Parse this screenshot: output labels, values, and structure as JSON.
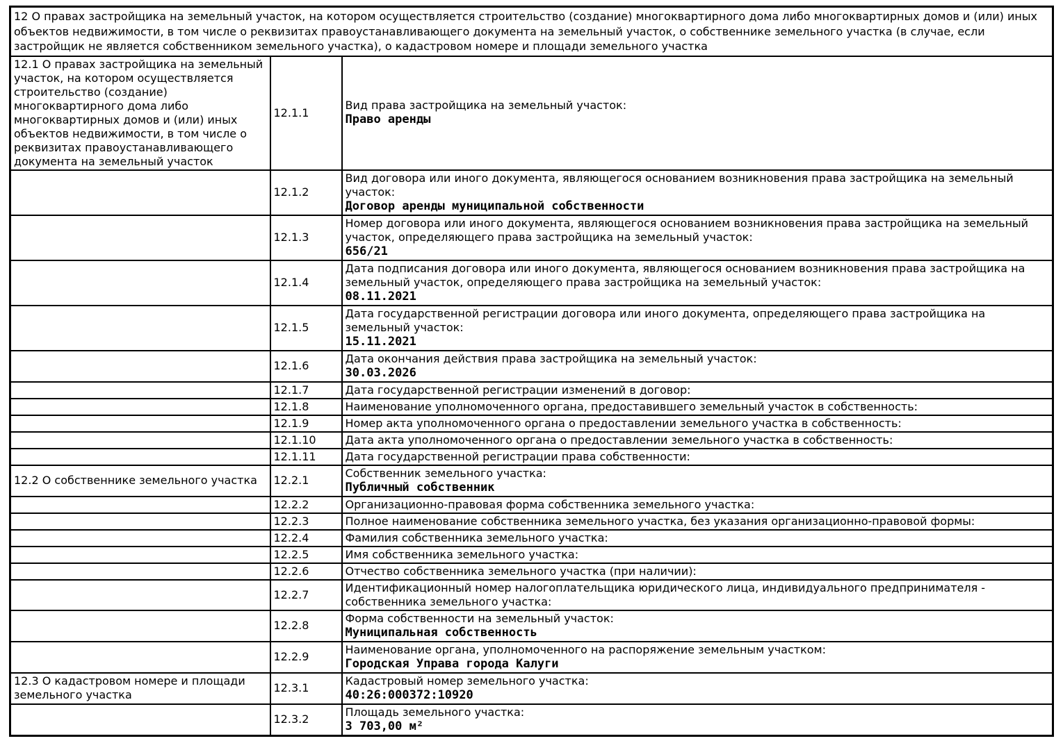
{
  "header": "12 О правах застройщика на земельный участок, на котором осуществляется строительство (создание) многоквартирного дома либо многоквартирных домов и (или) иных объектов недвижимости, в том числе о реквизитах правоустанавливающего документа на земельный участок, о собственнике земельного участка (в случае, если застройщик не является собственником земельного участка), о кадастровом номере и площади земельного участка",
  "colors": {
    "text": "#000000",
    "border": "#000000",
    "background": "#ffffff"
  },
  "rows": [
    {
      "section": "12.1 О правах застройщика на земельный участок, на котором осуществляется строительство (создание) многоквартирного дома либо многоквартирных домов и (или) иных объектов недвижимости, в том числе о реквизитах правоустанавливающего документа на земельный участок",
      "code": "12.1.1",
      "label": "Вид права застройщика на земельный участок:",
      "value": "Право аренды"
    },
    {
      "section": "",
      "code": "12.1.2",
      "label": "Вид договора или иного документа, являющегося основанием возникновения права застройщика на земельный участок:",
      "value": "Договор аренды муниципальной собственности"
    },
    {
      "section": "",
      "code": "12.1.3",
      "label": "Номер договора или иного документа, являющегося основанием возникновения права застройщика на земельный участок, определяющего права застройщика на земельный участок:",
      "value": "656/21"
    },
    {
      "section": "",
      "code": "12.1.4",
      "label": "Дата подписания договора или иного документа, являющегося основанием возникновения права застройщика на земельный участок, определяющего права застройщика на земельный участок:",
      "value": "08.11.2021"
    },
    {
      "section": "",
      "code": "12.1.5",
      "label": "Дата государственной регистрации договора или иного документа, определяющего права застройщика на земельный участок:",
      "value": "15.11.2021"
    },
    {
      "section": "",
      "code": "12.1.6",
      "label": "Дата окончания действия права застройщика на земельный участок:",
      "value": "30.03.2026"
    },
    {
      "section": "",
      "code": "12.1.7",
      "label": "Дата государственной регистрации изменений в договор:",
      "value": ""
    },
    {
      "section": "",
      "code": "12.1.8",
      "label": "Наименование уполномоченного органа, предоставившего земельный участок в собственность:",
      "value": ""
    },
    {
      "section": "",
      "code": "12.1.9",
      "label": "Номер акта уполномоченного органа о предоставлении земельного участка в собственность:",
      "value": ""
    },
    {
      "section": "",
      "code": "12.1.10",
      "label": "Дата акта уполномоченного органа о предоставлении земельного участка в собственность:",
      "value": ""
    },
    {
      "section": "",
      "code": "12.1.11",
      "label": "Дата государственной регистрации права собственности:",
      "value": ""
    },
    {
      "section": "12.2 О собственнике земельного участка",
      "code": "12.2.1",
      "label": "Собственник земельного участка:",
      "value": "Публичный собственник"
    },
    {
      "section": "",
      "code": "12.2.2",
      "label": "Организационно-правовая форма собственника земельного участка:",
      "value": ""
    },
    {
      "section": "",
      "code": "12.2.3",
      "label": "Полное наименование собственника земельного участка, без указания организационно-правовой формы:",
      "value": ""
    },
    {
      "section": "",
      "code": "12.2.4",
      "label": "Фамилия собственника земельного участка:",
      "value": ""
    },
    {
      "section": "",
      "code": "12.2.5",
      "label": "Имя собственника земельного участка:",
      "value": ""
    },
    {
      "section": "",
      "code": "12.2.6",
      "label": "Отчество собственника земельного участка (при наличии):",
      "value": ""
    },
    {
      "section": "",
      "code": "12.2.7",
      "label": "Идентификационный номер налогоплательщика юридического лица, индивидуального предпринимателя - собственника земельного участка:",
      "value": ""
    },
    {
      "section": "",
      "code": "12.2.8",
      "label": "Форма собственности на земельный участок:",
      "value": "Муниципальная собственность"
    },
    {
      "section": "",
      "code": "12.2.9",
      "label": "Наименование органа, уполномоченного на распоряжение земельным участком:",
      "value": "Городская Управа города Калуги"
    },
    {
      "section": "12.3 О кадастровом номере и площади земельного участка",
      "code": "12.3.1",
      "label": "Кадастровый номер земельного участка:",
      "value": "40:26:000372:10920"
    },
    {
      "section": "",
      "code": "12.3.2",
      "label": "Площадь земельного участка:",
      "value": "3 703,00 м²"
    }
  ]
}
